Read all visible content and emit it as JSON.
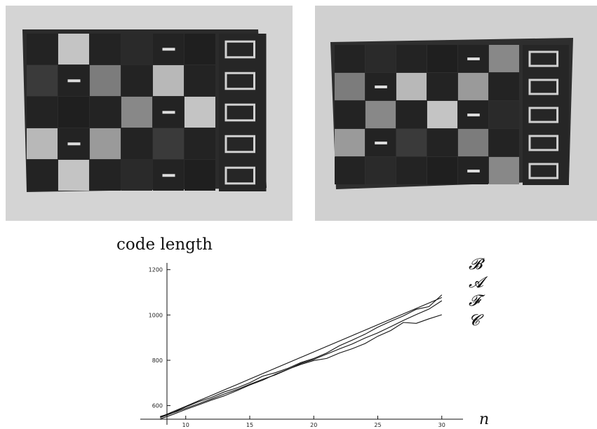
{
  "photos": [
    {
      "name": "checkerboard-photo-left"
    },
    {
      "name": "checkerboard-photo-right"
    }
  ],
  "chart_data": {
    "type": "line",
    "title": "",
    "ylabel": "code length",
    "xlabel": "n",
    "xlim": [
      7,
      31
    ],
    "ylim": [
      540,
      1230
    ],
    "xticks": [
      10,
      15,
      20,
      25,
      30
    ],
    "yticks": [
      600,
      800,
      1000,
      1200
    ],
    "x": [
      8,
      9,
      10,
      11,
      12,
      13,
      14,
      15,
      16,
      17,
      18,
      19,
      20,
      21,
      22,
      23,
      24,
      25,
      26,
      27,
      28,
      29,
      30
    ],
    "series": [
      {
        "name": "𝓑",
        "values": [
          549,
          573,
          597,
          621,
          645,
          669,
          693,
          717,
          741,
          765,
          789,
          813,
          837,
          861,
          885,
          909,
          933,
          957,
          981,
          1005,
          1029,
          1053,
          1077
        ]
      },
      {
        "name": "𝓐",
        "values": [
          552,
          569,
          594,
          617,
          636,
          660,
          678,
          701,
          730,
          745,
          765,
          790,
          808,
          832,
          864,
          889,
          915,
          946,
          972,
          996,
          1025,
          1037,
          1089
        ]
      },
      {
        "name": "𝓕",
        "values": [
          547,
          568,
          588,
          608,
          629,
          651,
          671,
          694,
          716,
          736,
          760,
          786,
          804,
          827,
          850,
          872,
          898,
          921,
          948,
          976,
          1002,
          1026,
          1063
        ]
      },
      {
        "name": "𝓒",
        "values": [
          541,
          561,
          583,
          603,
          624,
          643,
          666,
          691,
          712,
          738,
          761,
          782,
          799,
          808,
          832,
          851,
          874,
          906,
          931,
          967,
          963,
          983,
          1001
        ]
      }
    ]
  }
}
